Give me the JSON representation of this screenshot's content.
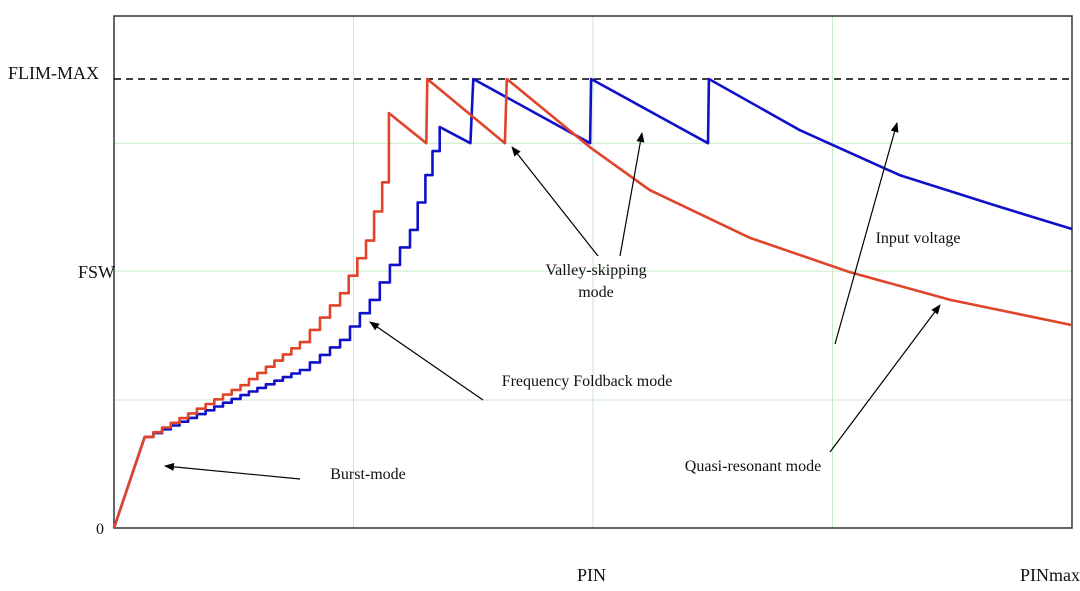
{
  "chart_data": {
    "type": "line",
    "title": "",
    "xlabel": "",
    "ylabel": "",
    "x_tick_labels": {
      "zero": "0",
      "pin": "PIN",
      "pinmax": "PINmax"
    },
    "y_tick_labels": {
      "fsw": "FSW",
      "flim_max": "FLIM-MAX"
    },
    "xlim": [
      0,
      100
    ],
    "ylim": [
      0,
      114
    ],
    "reference_lines": [
      {
        "label": "FLIM-MAX",
        "y": 100,
        "style": "dashed",
        "color": "#000000"
      }
    ],
    "grid": true,
    "grid_color": "#c8eac8",
    "series": [
      {
        "color": "#1010c8",
        "points": [
          [
            0,
            0
          ],
          [
            3.2,
            20.3
          ],
          [
            13.2,
            29.6
          ],
          [
            19.4,
            35.2
          ],
          [
            23.6,
            41.9
          ],
          [
            26.7,
            50.8
          ],
          [
            28.8,
            58.6
          ],
          [
            30.9,
            66.4
          ],
          [
            32.5,
            78.6
          ],
          [
            34.0,
            89.3
          ],
          [
            37.2,
            85.7
          ],
          [
            37.5,
            100
          ],
          [
            49.7,
            85.7
          ],
          [
            49.8,
            100
          ],
          [
            62.0,
            85.7
          ],
          [
            62.1,
            100
          ],
          [
            71.6,
            88.6
          ],
          [
            82.0,
            78.6
          ],
          [
            92.5,
            71.5
          ],
          [
            100,
            66.6
          ]
        ],
        "stepped_until": 34.0
      },
      {
        "color": "#e0442a",
        "points": [
          [
            0,
            0
          ],
          [
            3.2,
            20.3
          ],
          [
            13.2,
            31.8
          ],
          [
            19.4,
            41.4
          ],
          [
            23.6,
            52.3
          ],
          [
            26.3,
            64.0
          ],
          [
            28.0,
            77.0
          ],
          [
            28.7,
            92.4
          ],
          [
            32.6,
            85.7
          ],
          [
            32.7,
            100
          ],
          [
            40.8,
            85.7
          ],
          [
            41.0,
            100
          ],
          [
            49.8,
            84.6
          ],
          [
            55.9,
            75.3
          ],
          [
            66.4,
            64.6
          ],
          [
            76.8,
            57.0
          ],
          [
            87.3,
            50.8
          ],
          [
            100,
            45.2
          ]
        ],
        "stepped_until": 28.7
      }
    ],
    "annotations": [
      {
        "id": "burst",
        "text": "Burst-mode"
      },
      {
        "id": "foldback",
        "text": "Frequency Foldback mode"
      },
      {
        "id": "valley",
        "text_lines": [
          "Valley-skipping",
          "mode"
        ]
      },
      {
        "id": "input",
        "text": "Input voltage"
      },
      {
        "id": "qr",
        "text": "Quasi-resonant mode"
      }
    ]
  }
}
